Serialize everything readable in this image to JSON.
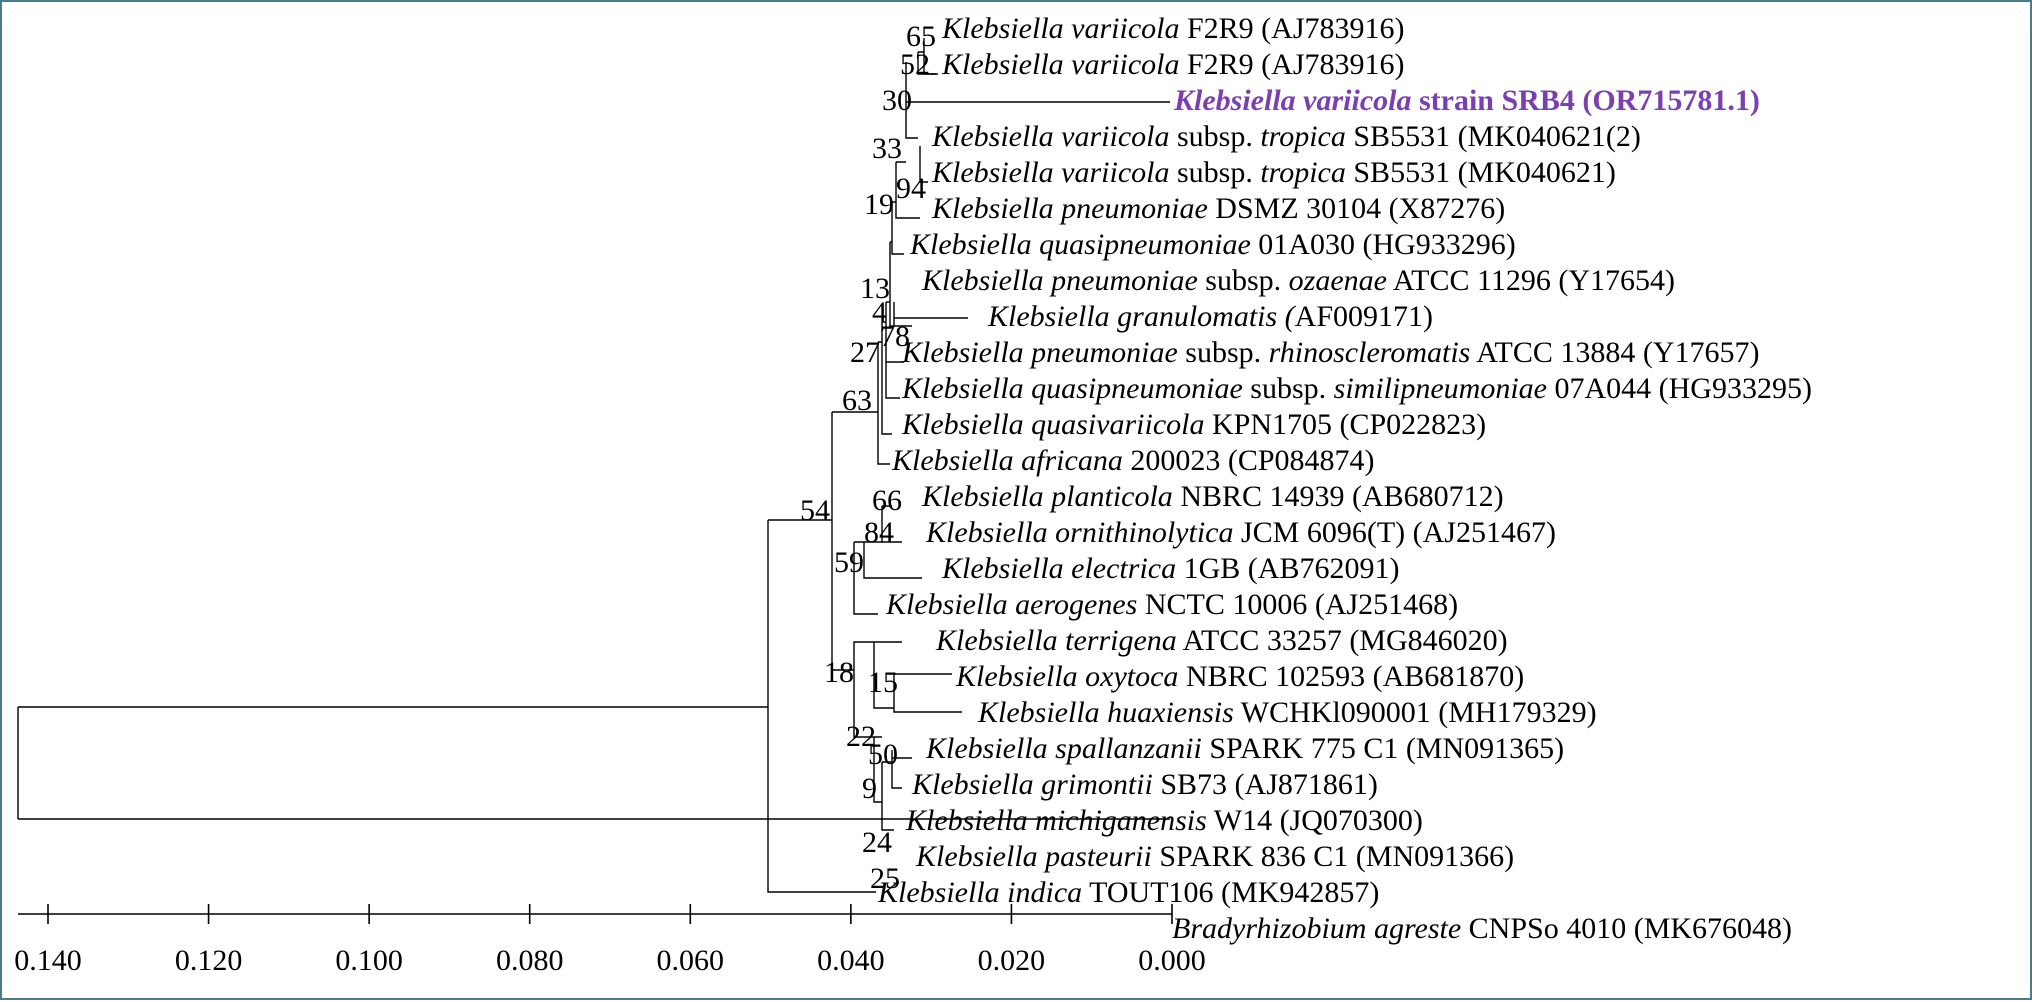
{
  "colors": {
    "border": "#4a7a8c",
    "highlight": "#7b3fb0",
    "line": "#000000"
  },
  "taxa": [
    {
      "italic": "Klebsiella variicola",
      "rest": " F2R9 (AJ783916)"
    },
    {
      "italic": "Klebsiella variicola",
      "rest": " F2R9 (AJ783916)"
    },
    {
      "italic": "Klebsiella variicola",
      "rest": " strain SRB4 (OR715781.1)",
      "highlight": true
    },
    {
      "italic": "Klebsiella variicola",
      "rest": " subsp. ",
      "italic2": "tropica",
      "rest2": " SB5531 (MK040621(2)"
    },
    {
      "italic": "Klebsiella variicola",
      "rest": " subsp. ",
      "italic2": "tropica",
      "rest2": " SB5531 (MK040621)"
    },
    {
      "italic": "Klebsiella pneumoniae",
      "rest": " DSMZ 30104 (X87276)"
    },
    {
      "italic": "Klebsiella quasipneumoniae",
      "rest": " 01A030 (HG933296)"
    },
    {
      "italic": "Klebsiella pneumoniae",
      "rest": " subsp. ",
      "italic2": "ozaenae",
      "rest2": " ATCC 11296 (Y17654)"
    },
    {
      "italic": "Klebsiella granulomatis (",
      "rest": "AF009171)"
    },
    {
      "italic": "Klebsiella pneumoniae",
      "rest": " subsp. ",
      "italic2": "rhinoscleromatis",
      "rest2": " ATCC 13884 (Y17657)"
    },
    {
      "italic": "Klebsiella quasipneumoniae",
      "rest": " subsp. ",
      "italic2": "similipneumoniae",
      "rest2": " 07A044 (HG933295)"
    },
    {
      "italic": "Klebsiella quasivariicola",
      "rest": " KPN1705 (CP022823)"
    },
    {
      "italic": "Klebsiella africana",
      "rest": " 200023 (CP084874)"
    },
    {
      "italic": "Klebsiella planticola",
      "rest": " NBRC 14939 (AB680712)"
    },
    {
      "italic": "Klebsiella ornithinolytica",
      "rest": " JCM 6096(T) (AJ251467)"
    },
    {
      "italic": "Klebsiella electrica",
      "rest": " 1GB (AB762091)"
    },
    {
      "italic": "Klebsiella aerogenes",
      "rest": " NCTC 10006 (AJ251468)"
    },
    {
      "italic": "Klebsiella terrigena",
      "rest": " ATCC 33257 (MG846020)"
    },
    {
      "italic": "Klebsiella oxytoca",
      "rest": " NBRC 102593 (AB681870)"
    },
    {
      "italic": "Klebsiella huaxiensis",
      "rest": " WCHKl090001 (MH179329)"
    },
    {
      "italic": "Klebsiella spallanzanii",
      "rest": " SPARK 775 C1 (MN091365)"
    },
    {
      "italic": "Klebsiella grimontii",
      "rest": " SB73 (AJ871861)"
    },
    {
      "italic": "Klebsiella michiganensis",
      "rest": " W14 (JQ070300)"
    },
    {
      "italic": "Klebsiella pasteurii",
      "rest": " SPARK 836 C1 (MN091366)"
    },
    {
      "italic": "Klebsiella indica",
      "rest": " TOUT106 (MK942857)"
    },
    {
      "italic": "Bradyrhizobium agreste",
      "rest": " CNPSo 4010 (MK676048)"
    }
  ],
  "bootstrap": [
    "65",
    "52",
    "30",
    "33",
    "94",
    "19",
    "13",
    "4",
    "78",
    "27",
    "63",
    "54",
    "66",
    "84",
    "59",
    "18",
    "15",
    "22",
    "50",
    "9",
    "24",
    "25"
  ],
  "scale_ticks": [
    "0.140",
    "0.120",
    "0.100",
    "0.080",
    "0.060",
    "0.040",
    "0.020",
    "0.000"
  ]
}
